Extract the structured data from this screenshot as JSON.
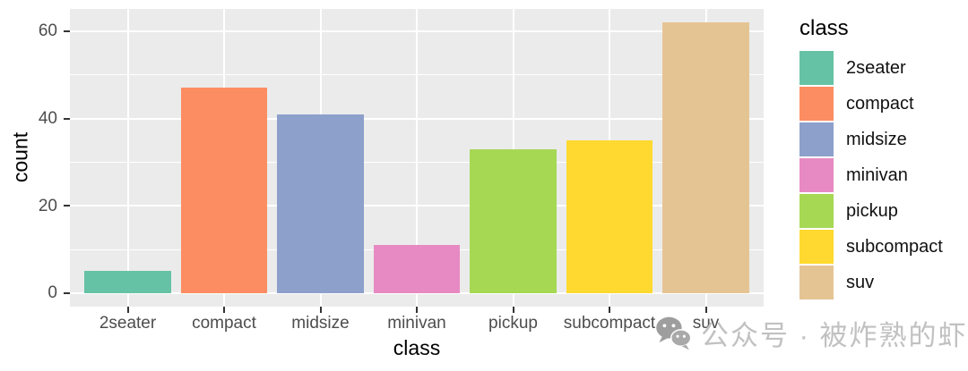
{
  "chart_data": {
    "type": "bar",
    "title": "",
    "xlabel": "class",
    "ylabel": "count",
    "categories": [
      "2seater",
      "compact",
      "midsize",
      "minivan",
      "pickup",
      "subcompact",
      "suv"
    ],
    "values": [
      5,
      47,
      41,
      11,
      33,
      35,
      62
    ],
    "bar_colors": [
      "#66C2A5",
      "#FC8D62",
      "#8DA0CB",
      "#E78AC3",
      "#A6D854",
      "#FFD92F",
      "#E5C494"
    ],
    "ylim": [
      0,
      62
    ],
    "y_major_ticks": [
      0,
      20,
      40,
      60
    ],
    "y_minor_ticks": [
      10,
      30,
      50
    ],
    "grid": "on",
    "panel_background": "#EBEBEB",
    "gridline_color": "#FFFFFF",
    "legend": {
      "position": "right",
      "title": "class",
      "entries": [
        "2seater",
        "compact",
        "midsize",
        "minivan",
        "pickup",
        "subcompact",
        "suv"
      ]
    }
  },
  "watermark": {
    "icon": "wechat-icon",
    "text": "公众号 · 被炸熟的虾",
    "icon_color": "#9e9e9e",
    "text_color": "#c1c1c1"
  }
}
